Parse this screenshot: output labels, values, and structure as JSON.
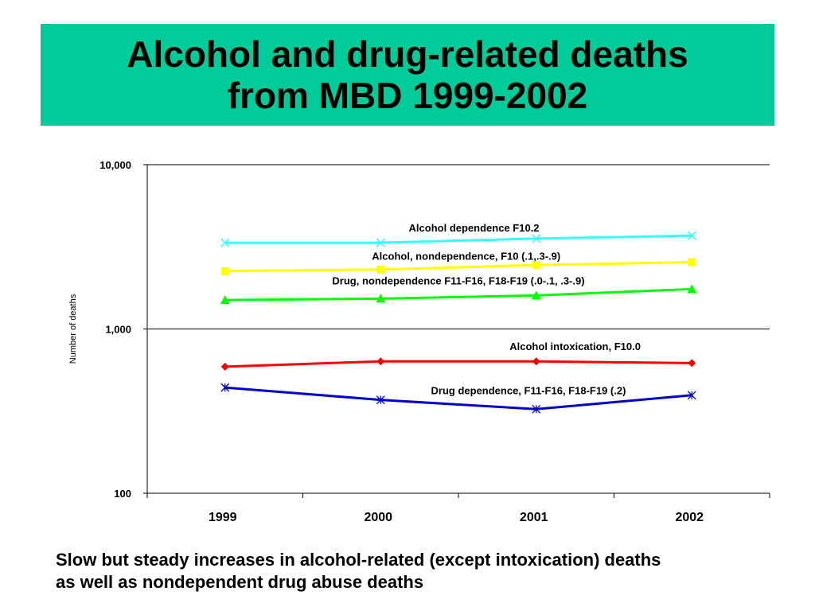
{
  "title": {
    "line1": "Alcohol and drug-related deaths",
    "line2": "from MBD 1999-2002"
  },
  "caption": {
    "line1": "Slow but steady increases in alcohol-related (except intoxication) deaths",
    "line2": "as well as nondependent drug abuse deaths"
  },
  "colors": {
    "banner": "#00cc99"
  },
  "chart_data": {
    "type": "line",
    "ylabel": "Number of deaths",
    "xlabel": "",
    "x": [
      "1999",
      "2000",
      "2001",
      "2002"
    ],
    "yscale": "log",
    "ylim": [
      100,
      10000
    ],
    "yticks": [
      {
        "value": 100,
        "label": "100"
      },
      {
        "value": 1000,
        "label": "1,000"
      },
      {
        "value": 10000,
        "label": "10,000"
      }
    ],
    "grid": "horizontal at 1,000 and 10,000",
    "series": [
      {
        "name": "Alcohol dependence F10.2",
        "values": [
          3350,
          3350,
          3550,
          3700
        ],
        "color": "#33ffff",
        "marker": "x"
      },
      {
        "name": "Alcohol, nondependence,  F10 (.1,.3-.9)",
        "values": [
          2250,
          2300,
          2450,
          2550
        ],
        "color": "#ffff00",
        "marker": "square"
      },
      {
        "name": "Drug, nondependence F11-F16, F18-F19  (.0-.1, .3-.9)",
        "values": [
          1500,
          1530,
          1600,
          1750
        ],
        "color": "#00ff00",
        "marker": "triangle"
      },
      {
        "name": "Alcohol intoxication, F10.0",
        "values": [
          590,
          635,
          635,
          620
        ],
        "color": "#ff0000",
        "marker": "diamond"
      },
      {
        "name": "Drug dependence, F11-F16, F18-F19 (.2)",
        "values": [
          440,
          370,
          325,
          395
        ],
        "color": "#0000cc",
        "marker": "star"
      }
    ]
  }
}
